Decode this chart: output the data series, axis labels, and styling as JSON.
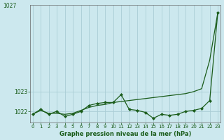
{
  "title": "Graphe pression niveau de la mer (hPa)",
  "bg_color": "#cce8ee",
  "grid_color": "#aacdd5",
  "line_color": "#1a5c1a",
  "trend_color": "#1a5c1a",
  "label_color": "#1a5c1a",
  "hours": [
    0,
    1,
    2,
    3,
    4,
    5,
    6,
    7,
    8,
    9,
    10,
    11,
    12,
    13,
    14,
    15,
    16,
    17,
    18,
    19,
    20,
    21,
    22,
    23
  ],
  "pressure": [
    1021.85,
    1022.1,
    1021.85,
    1022.0,
    1021.75,
    1021.85,
    1022.0,
    1022.3,
    1022.4,
    1022.45,
    1022.45,
    1022.85,
    1022.1,
    1022.05,
    1021.95,
    1021.65,
    1021.85,
    1021.8,
    1021.85,
    1022.0,
    1022.05,
    1022.15,
    1022.55,
    1027.0
  ],
  "trend": [
    1021.85,
    1022.05,
    1021.9,
    1021.9,
    1021.85,
    1021.9,
    1022.05,
    1022.2,
    1022.3,
    1022.35,
    1022.45,
    1022.5,
    1022.55,
    1022.6,
    1022.65,
    1022.7,
    1022.75,
    1022.8,
    1022.85,
    1022.9,
    1023.0,
    1023.15,
    1024.6,
    1027.0
  ],
  "ylim_min": 1021.45,
  "ylim_max": 1027.4,
  "ytick_vals": [
    1022,
    1023
  ],
  "ytick_labels": [
    "1022",
    "1023"
  ],
  "ytop_label": "1027",
  "xticks": [
    0,
    1,
    2,
    3,
    4,
    5,
    6,
    7,
    8,
    9,
    10,
    11,
    12,
    13,
    14,
    15,
    16,
    17,
    18,
    19,
    20,
    21,
    22,
    23
  ]
}
